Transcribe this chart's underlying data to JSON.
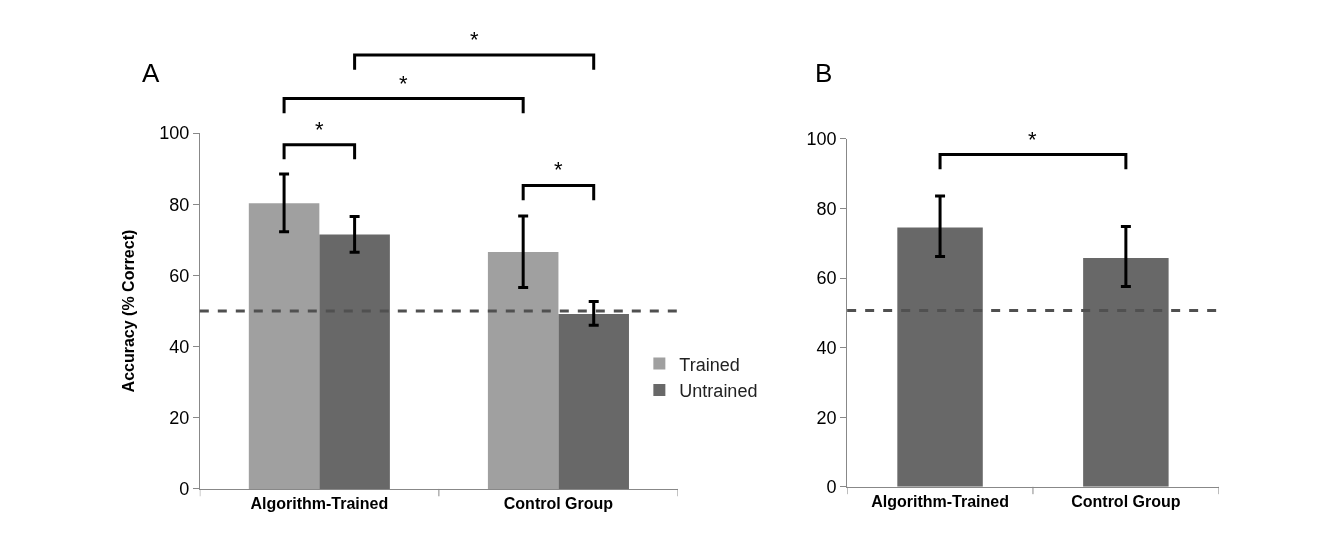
{
  "chart_data": [
    {
      "type": "bar",
      "title": "A",
      "ylabel": "Accuracy (% Correct)",
      "categories": [
        "Algorithm-Trained",
        "Control Group"
      ],
      "series": [
        {
          "name": "Trained",
          "color": "#a0a0a0",
          "values": [
            80.3,
            66.6
          ],
          "errors": [
            [
              72.3,
              88.5
            ],
            [
              56.6,
              76.7
            ]
          ]
        },
        {
          "name": "Untrained",
          "color": "#686868",
          "values": [
            71.5,
            49.2
          ],
          "errors": [
            [
              66.5,
              76.6
            ],
            [
              46.0,
              52.7
            ]
          ]
        }
      ],
      "ylim": [
        0,
        100
      ],
      "yticks": [
        0,
        20,
        40,
        60,
        80,
        100
      ],
      "legend": "right",
      "ref_lines": [
        {
          "axis": "y",
          "value": 50,
          "color": "#505050",
          "line_style": "dashed"
        }
      ],
      "annotations": [
        "*",
        "*",
        "*",
        "*"
      ]
    },
    {
      "type": "bar",
      "title": "B",
      "categories": [
        "Algorithm-Trained",
        "Control Group"
      ],
      "series": [
        {
          "color": "#686868",
          "values": [
            74.5,
            65.8
          ],
          "errors": [
            [
              66.2,
              83.6
            ],
            [
              57.6,
              74.8
            ]
          ]
        }
      ],
      "ylim": [
        0,
        100
      ],
      "yticks": [
        0,
        20,
        40,
        60,
        80,
        100
      ],
      "legend": false,
      "ref_lines": [
        {
          "axis": "y",
          "value": 50.7,
          "color": "#505050",
          "line_style": "dashed"
        }
      ],
      "annotations": [
        "*"
      ]
    }
  ]
}
